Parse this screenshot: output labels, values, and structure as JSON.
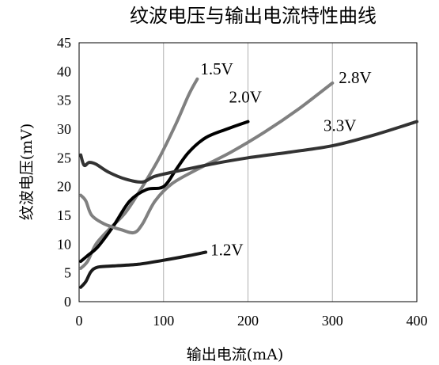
{
  "chart_data": {
    "type": "line",
    "title": "纹波电压与输出电流特性曲线",
    "xlabel": "输出电流(mA)",
    "ylabel": "纹波电压(mV)",
    "xlim": [
      0,
      400
    ],
    "ylim": [
      0,
      45
    ],
    "xticks": [
      "0",
      "100",
      "200",
      "300",
      "400"
    ],
    "yticks": [
      "0",
      "5",
      "10",
      "15",
      "20",
      "25",
      "30",
      "35",
      "40",
      "45"
    ],
    "grid": "vertical",
    "series": [
      {
        "name": "1.2V",
        "color": "#1a1a1a",
        "points": [
          [
            2,
            2.5
          ],
          [
            8,
            3.5
          ],
          [
            14,
            5.2
          ],
          [
            22,
            6
          ],
          [
            40,
            6.2
          ],
          [
            70,
            6.5
          ],
          [
            100,
            7.2
          ],
          [
            130,
            8
          ],
          [
            150,
            8.6
          ]
        ]
      },
      {
        "name": "1.5V",
        "color": "#808080",
        "points": [
          [
            2,
            5.8
          ],
          [
            10,
            7
          ],
          [
            20,
            10
          ],
          [
            35,
            12.5
          ],
          [
            55,
            15.5
          ],
          [
            75,
            20
          ],
          [
            95,
            25
          ],
          [
            115,
            31
          ],
          [
            130,
            36
          ],
          [
            140,
            38.7
          ]
        ]
      },
      {
        "name": "2.0V",
        "color": "#000000",
        "points": [
          [
            2,
            7
          ],
          [
            10,
            8
          ],
          [
            22,
            9.5
          ],
          [
            40,
            13
          ],
          [
            60,
            17.5
          ],
          [
            80,
            19.5
          ],
          [
            100,
            20
          ],
          [
            115,
            23
          ],
          [
            130,
            26
          ],
          [
            150,
            28.5
          ],
          [
            175,
            30
          ],
          [
            200,
            31.3
          ]
        ]
      },
      {
        "name": "2.8V",
        "color": "#808080",
        "points": [
          [
            2,
            18.5
          ],
          [
            8,
            17.5
          ],
          [
            15,
            15
          ],
          [
            30,
            13.5
          ],
          [
            50,
            12.5
          ],
          [
            65,
            12
          ],
          [
            75,
            13.5
          ],
          [
            90,
            17.5
          ],
          [
            110,
            20.5
          ],
          [
            140,
            23
          ],
          [
            180,
            26
          ],
          [
            220,
            29.5
          ],
          [
            260,
            33.5
          ],
          [
            300,
            38
          ]
        ]
      },
      {
        "name": "3.3V",
        "color": "#333333",
        "points": [
          [
            2,
            25.5
          ],
          [
            6,
            23.7
          ],
          [
            12,
            24.2
          ],
          [
            20,
            23.9
          ],
          [
            35,
            22.5
          ],
          [
            55,
            21.3
          ],
          [
            75,
            20.8
          ],
          [
            90,
            21.8
          ],
          [
            120,
            22.8
          ],
          [
            160,
            24
          ],
          [
            200,
            25
          ],
          [
            250,
            26
          ],
          [
            300,
            27.1
          ],
          [
            350,
            29
          ],
          [
            400,
            31.3
          ]
        ]
      }
    ]
  }
}
